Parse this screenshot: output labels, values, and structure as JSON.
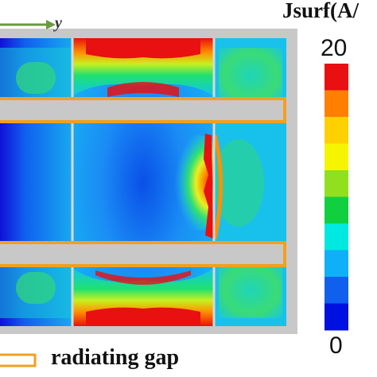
{
  "axis_label": "y",
  "colorbar": {
    "title": "Jsurf(A/",
    "max_label": "20",
    "min_label": "0",
    "colors": [
      "#e81010",
      "#ff7f00",
      "#ffd000",
      "#f5f500",
      "#90e020",
      "#10d040",
      "#00e8e0",
      "#10b0f8",
      "#1060f0",
      "#0010e0"
    ]
  },
  "legend": {
    "label": "radiating gap",
    "swatch_color": "#f0a020"
  },
  "colors": {
    "frame": "#c8c8c8",
    "field_blue": "#0d6cf0",
    "hot": "#e81010"
  }
}
